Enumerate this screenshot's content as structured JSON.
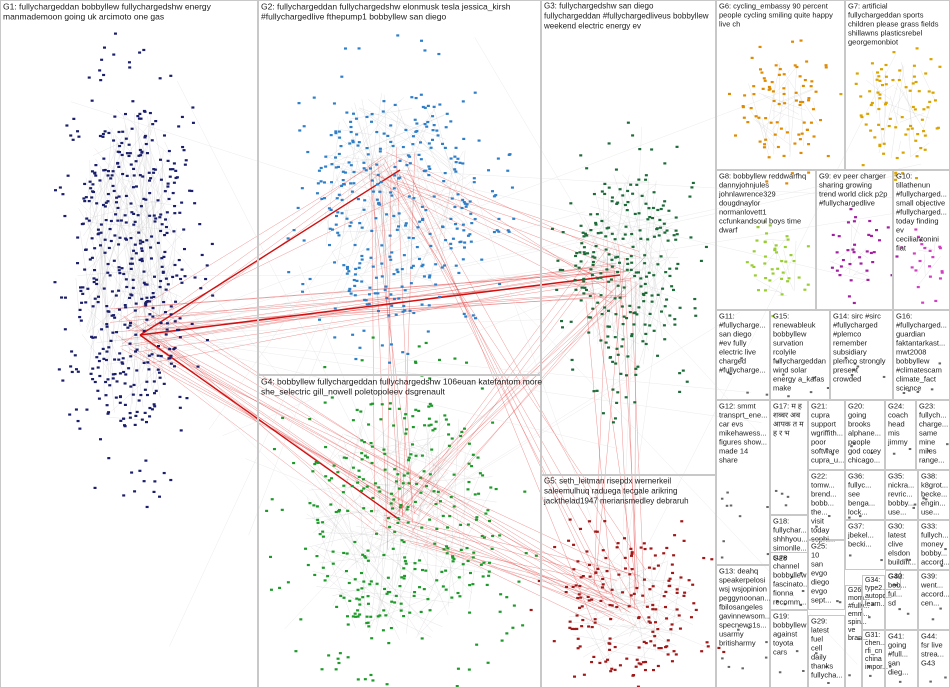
{
  "panels": [
    {
      "lines": [
        "G1: fullychargeddan bobbyllew fullychargedshw energy",
        "manmademoon going uk arcimoto one gas"
      ]
    },
    {
      "lines": [
        "G2: fullychargeddan fullychargedshw elonmusk tesla jessica_kirsh",
        "#fullychargedlive fthepump1 bobbyllew san diego"
      ]
    },
    {
      "lines": [
        "G3: fullychargedshw san diego",
        "fullychargeddan #fullychargedliveus bobbyllew",
        "weekend electric energy ev"
      ]
    },
    {
      "lines": [
        "G6: cycling_embassy 90 percent",
        "people cycling smiling quite happy",
        "live ch"
      ]
    },
    {
      "lines": [
        "G7: artificial",
        "fullychargeddan sports",
        "children please grass fields",
        "shillawns plasticsrebel",
        "georgemonbiot"
      ]
    },
    {
      "lines": [
        "G8: bobbyllew reddwarfhq",
        "dannyjohnjules",
        "johnlawrence329",
        "dougdnaylor",
        "normanlovett1",
        "ccfunkandsoul boys time",
        "dwarf"
      ]
    },
    {
      "lines": [
        "G9: ev peer charger",
        "sharing growing",
        "trend world click p2p",
        "#fullychargedlive"
      ]
    },
    {
      "lines": [
        "G10:",
        "tillathenun",
        "#fullycharged...",
        "small objective",
        "#fullycharged...",
        "today finding",
        "ev",
        "ceciliantonini",
        "fiat"
      ]
    },
    {
      "lines": [
        "G4: bobbyllew fullychargeddan fullychargedshw 106euan katefantom more",
        "she_selectric gill_nowell poletopoleev dsgrenault"
      ]
    },
    {
      "lines": [
        "G5: seth_leitman risepdx wernerkeil",
        "saleemulhuq raduega tecgale arikring",
        "jackthelad1947 meriansmedley debraruh"
      ]
    },
    {
      "lines": [
        "G11:",
        "#fullycharge...",
        "san diego",
        "#ev fully",
        "electric live",
        "charged",
        "#fullycharge..."
      ]
    },
    {
      "lines": [
        "G15:",
        "renewableuk",
        "bobbyllew",
        "survation",
        "rcolyile",
        "fullychargeddan",
        "wind solar",
        "energy a_kafas",
        "make"
      ]
    },
    {
      "lines": [
        "G14: sirc #sirc",
        "#fullycharged",
        "#plemco",
        "remember",
        "subsidiary",
        "plemco strongly",
        "present",
        "crowded"
      ]
    },
    {
      "lines": [
        "G16:",
        "#fullycharged...",
        "guardian",
        "faktantarkast...",
        "mwt2008",
        "bobbyllew",
        "#climatescam",
        "climate_fact",
        "science"
      ]
    },
    {
      "lines": [
        "G12: smmt",
        "transprt_ene...",
        "car evs",
        "mikehawess...",
        "figures show...",
        "made 14",
        "share"
      ]
    },
    {
      "lines": [
        "G17: म ह",
        "शब्बर अब",
        "आपक त म",
        "ह र भ"
      ]
    },
    {
      "lines": [
        "G21:",
        "cupra",
        "support",
        "wgriffith...",
        "poor",
        "software",
        "cupra_u..."
      ]
    },
    {
      "lines": [
        "G20:",
        "going",
        "brooks",
        "alphane...",
        "people",
        "god corey",
        "chicago..."
      ]
    },
    {
      "lines": [
        "G24:",
        "coach",
        "head",
        "mis",
        "jimmy"
      ]
    },
    {
      "lines": [
        "G23:",
        "fullych...",
        "charge...",
        "same",
        "mine",
        "miles",
        "range..."
      ]
    },
    {
      "lines": [
        "G13: deahq",
        "speakerpelosi",
        "wsj wsjopinion",
        "peggynoonan...",
        "fbilosangeles",
        "gavinnewsom...",
        "specnews1s...",
        "usarmy",
        "britisharmy"
      ]
    },
    {
      "lines": [
        "G18:",
        "fullychar...",
        "shhhyou...",
        "simonlle...",
        "sure",
        "channel",
        "bobbyllew",
        "fascinato...",
        "fionna",
        "recomm..."
      ]
    },
    {
      "lines": [
        "G22:",
        "tomw...",
        "brend...",
        "bobb...",
        "the...",
        "visit",
        "today",
        "sophi..."
      ]
    },
    {
      "lines": [
        "G36:",
        "fullyc...",
        "see",
        "benga...",
        "lock..."
      ]
    },
    {
      "lines": [
        "G35:",
        "nickra...",
        "revric...",
        "bobby...",
        "use..."
      ]
    },
    {
      "lines": [
        "G38:",
        "k8grot...",
        "becke...",
        "engin...",
        "use..."
      ]
    },
    {
      "lines": [
        "G37:",
        "jbekel...",
        "becki..."
      ]
    },
    {
      "lines": [
        "G30:",
        "latest",
        "clive",
        "elsdon",
        "buildin..."
      ]
    },
    {
      "lines": [
        "G33:",
        "fullych...",
        "money",
        "bobby...",
        "accord..."
      ]
    },
    {
      "lines": [
        "G25:",
        "10",
        "san",
        "evgo",
        "diego",
        "evgo",
        "sept..."
      ]
    },
    {
      "lines": [
        "G28"
      ]
    },
    {
      "lines": [
        "G19:",
        "bobbyllew",
        "against",
        "toyota",
        "cars"
      ]
    },
    {
      "lines": [
        "G29:",
        "latest",
        "fuel",
        "cell",
        "daily",
        "thanks",
        "fullycha..."
      ]
    },
    {
      "lines": [
        "G26:",
        "morn...",
        "#fully...",
        "emm...",
        "spin...",
        "ve",
        "bran..."
      ]
    },
    {
      "lines": [
        "G34:",
        "type2...",
        "autopc...",
        "learn..."
      ]
    },
    {
      "lines": [
        "G32"
      ]
    },
    {
      "lines": [
        "G40:",
        "bob...",
        "ful...",
        "sd"
      ]
    },
    {
      "lines": [
        "G39:",
        "went...",
        "accord...",
        "cen..."
      ]
    },
    {
      "lines": [
        "G31:",
        "chen...",
        "rfi_cn",
        "china",
        "impor..."
      ]
    },
    {
      "lines": [
        "G41:",
        "going",
        "#full...",
        "san",
        "dieg..."
      ]
    },
    {
      "lines": [
        "G44:",
        "fsr live",
        "strea...",
        "G43"
      ]
    }
  ]
}
